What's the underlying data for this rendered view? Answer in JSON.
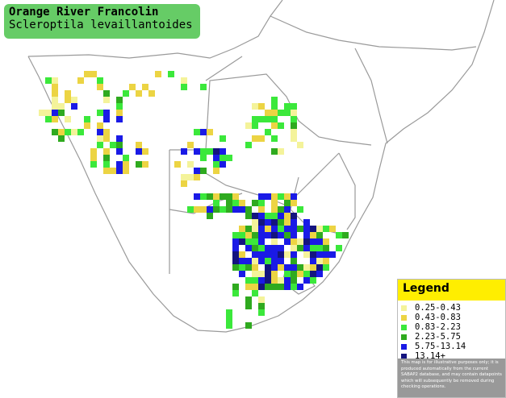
{
  "header": {
    "title": "Orange River Francolin",
    "subtitle": "Scleroptila levaillantoides"
  },
  "legend": {
    "title": "Legend",
    "items": [
      {
        "label": "0.25-0.43",
        "color": "#f4f39a"
      },
      {
        "label": "0.43-0.83",
        "color": "#ecd443"
      },
      {
        "label": "0.83-2.23",
        "color": "#3be83b"
      },
      {
        "label": "2.23-5.75",
        "color": "#2faa1f"
      },
      {
        "label": "5.75-13.14",
        "color": "#1a1ae6"
      },
      {
        "label": "13.14+",
        "color": "#14147f"
      }
    ],
    "note": "This map is for illustrative purposes only; it is produced automatically from the current SABAP2 database, and may contain datapoints which will subsequently be removed during checking operations."
  }
}
